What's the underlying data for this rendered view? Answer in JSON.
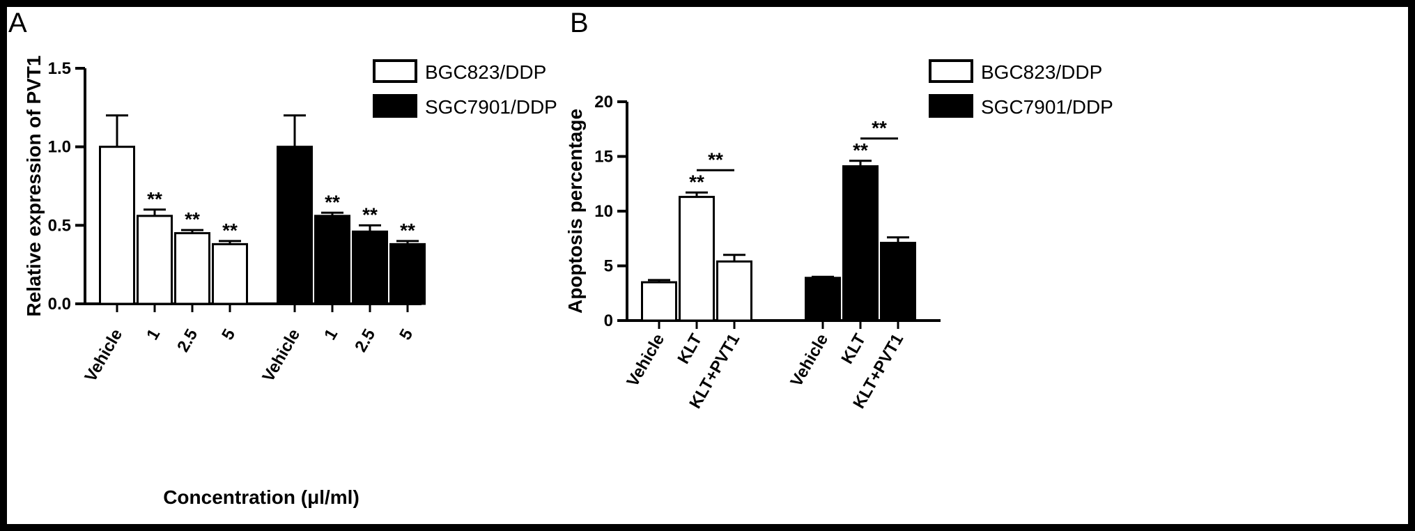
{
  "chart_data": [
    {
      "panel": "A",
      "type": "bar",
      "ylabel": "Relative expression of PVT1",
      "xlabel": "Concentration (μl/ml)",
      "ylim": [
        0,
        1.5
      ],
      "yticks": [
        "0.0",
        "0.5",
        "1.0",
        "1.5"
      ],
      "legend_position": "top-right",
      "groups": [
        {
          "name": "BGC823/DDP",
          "color": "#ffffff",
          "categories": [
            "Vehicle",
            "1",
            "2.5",
            "5"
          ],
          "values": [
            1.0,
            0.56,
            0.45,
            0.38
          ],
          "errors": [
            0.2,
            0.04,
            0.02,
            0.02
          ],
          "significance": [
            "",
            "**",
            "**",
            "**"
          ]
        },
        {
          "name": "SGC7901/DDP",
          "color": "#000000",
          "categories": [
            "Vehicle",
            "1",
            "2.5",
            "5"
          ],
          "values": [
            1.0,
            0.56,
            0.46,
            0.38
          ],
          "errors": [
            0.2,
            0.02,
            0.04,
            0.02
          ],
          "significance": [
            "",
            "**",
            "**",
            "**"
          ]
        }
      ]
    },
    {
      "panel": "B",
      "type": "bar",
      "ylabel": "Apoptosis percentage",
      "ylim": [
        0,
        20
      ],
      "yticks": [
        "0",
        "5",
        "10",
        "15",
        "20"
      ],
      "legend_position": "top-right",
      "groups": [
        {
          "name": "BGC823/DDP",
          "color": "#ffffff",
          "categories": [
            "Vehicle",
            "KLT",
            "KLT+PVT1"
          ],
          "values": [
            3.5,
            11.3,
            5.4
          ],
          "errors": [
            0.2,
            0.4,
            0.6
          ],
          "significance": [
            "",
            "**",
            ""
          ],
          "bracket_label": "**"
        },
        {
          "name": "SGC7901/DDP",
          "color": "#000000",
          "categories": [
            "Vehicle",
            "KLT",
            "KLT+PVT1"
          ],
          "values": [
            3.9,
            14.1,
            7.1
          ],
          "errors": [
            0.1,
            0.5,
            0.5
          ],
          "significance": [
            "",
            "**",
            ""
          ],
          "bracket_label": "**"
        }
      ]
    }
  ]
}
